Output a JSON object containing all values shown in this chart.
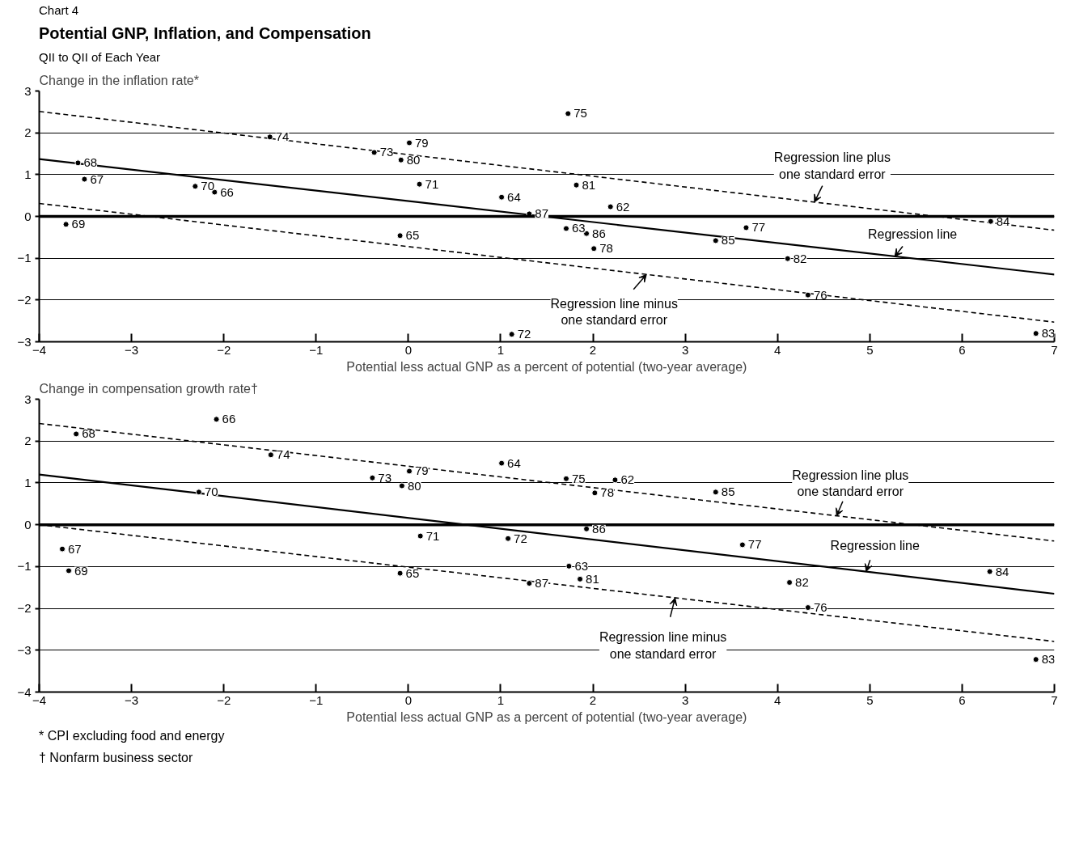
{
  "chart_data": [
    {
      "type": "scatter",
      "title": "Potential GNP, Inflation, and Compensation",
      "subtitle": "QII to QII of Each Year",
      "ylabel": "Change in the inflation rate*",
      "xlabel": "Potential less actual GNP as a percent of potential (two-year average)",
      "xlim": [
        -4,
        7
      ],
      "ylim": [
        -3,
        3
      ],
      "xticks": [
        -4,
        -3,
        -2,
        -1,
        0,
        1,
        2,
        3,
        4,
        5,
        6,
        7
      ],
      "yticks": [
        -3,
        -2,
        -1,
        0,
        1,
        2,
        3
      ],
      "grid": "y",
      "marker": "circle",
      "ref_lines": [
        {
          "axis": "y",
          "value": 0
        }
      ],
      "annotations": [
        "Chart 4",
        {
          "text": "Regression line plus\none standard error",
          "x": 4.4,
          "y": 0.34
        },
        {
          "text": "Regression line",
          "x": 5.27,
          "y": -0.96
        },
        {
          "text": "Regression line minus\none standard error",
          "x": 2.58,
          "y": -1.39
        },
        {
          "text": "75",
          "x": 1.73,
          "y": 2.46
        },
        {
          "text": "74",
          "x": -1.5,
          "y": 1.9
        },
        {
          "text": "79",
          "x": 0.01,
          "y": 1.76
        },
        {
          "text": "73",
          "x": -0.37,
          "y": 1.53
        },
        {
          "text": "80",
          "x": -0.08,
          "y": 1.35
        },
        {
          "text": "68",
          "x": -3.58,
          "y": 1.28
        },
        {
          "text": "67",
          "x": -3.51,
          "y": 0.89
        },
        {
          "text": "70",
          "x": -2.31,
          "y": 0.72
        },
        {
          "text": "66",
          "x": -2.1,
          "y": 0.58
        },
        {
          "text": "71",
          "x": 0.12,
          "y": 0.77
        },
        {
          "text": "81",
          "x": 1.82,
          "y": 0.75
        },
        {
          "text": "64",
          "x": 1.01,
          "y": 0.46
        },
        {
          "text": "62",
          "x": 2.19,
          "y": 0.23
        },
        {
          "text": "87",
          "x": 1.31,
          "y": 0.06
        },
        {
          "text": "69",
          "x": -3.71,
          "y": -0.19
        },
        {
          "text": "63",
          "x": 1.71,
          "y": -0.29
        },
        {
          "text": "86",
          "x": 1.93,
          "y": -0.41
        },
        {
          "text": "77",
          "x": 3.66,
          "y": -0.27
        },
        {
          "text": "85",
          "x": 3.33,
          "y": -0.58
        },
        {
          "text": "84",
          "x": 6.31,
          "y": -0.12
        },
        {
          "text": "65",
          "x": -0.09,
          "y": -0.46
        },
        {
          "text": "78",
          "x": 2.01,
          "y": -0.77
        },
        {
          "text": "82",
          "x": 4.11,
          "y": -1.01
        },
        {
          "text": "76",
          "x": 4.33,
          "y": -1.88
        },
        {
          "text": "72",
          "x": 1.12,
          "y": -2.82
        },
        {
          "text": "83",
          "x": 6.8,
          "y": -2.8
        }
      ],
      "series": [
        {
          "color": "#000000",
          "x": [
            1.73,
            -1.5,
            0.01,
            -0.37,
            -0.08,
            -3.58,
            -3.51,
            -2.31,
            -2.1,
            0.12,
            1.82,
            1.01,
            2.19,
            1.31,
            -3.71,
            1.71,
            1.93,
            3.66,
            3.33,
            6.31,
            -0.09,
            2.01,
            4.11,
            4.33,
            1.12,
            6.8
          ],
          "values": [
            2.46,
            1.9,
            1.76,
            1.53,
            1.35,
            1.28,
            0.89,
            0.72,
            0.58,
            0.77,
            0.75,
            0.46,
            0.23,
            0.06,
            -0.19,
            -0.29,
            -0.41,
            -0.27,
            -0.58,
            -0.12,
            -0.46,
            -0.77,
            -1.01,
            -1.88,
            -2.82,
            -2.8
          ]
        },
        {
          "type": "line",
          "marker": "none",
          "color": "#000000",
          "line_style": "solid",
          "x": [
            -4,
            7
          ],
          "values": [
            1.37,
            -1.39
          ]
        },
        {
          "type": "line",
          "marker": "none",
          "color": "#000000",
          "line_style": "dashed",
          "x": [
            -4,
            7
          ],
          "values": [
            2.51,
            -0.33
          ]
        },
        {
          "type": "line",
          "marker": "none",
          "color": "#000000",
          "line_style": "dashed",
          "x": [
            -4,
            7
          ],
          "values": [
            0.31,
            -2.53
          ]
        }
      ]
    },
    {
      "type": "scatter",
      "ylabel": "Change in compensation growth rate†",
      "xlabel": "Potential less actual GNP as a percent of potential (two-year average)",
      "xlim": [
        -4,
        7
      ],
      "ylim": [
        -4,
        3
      ],
      "xticks": [
        -4,
        -3,
        -2,
        -1,
        0,
        1,
        2,
        3,
        4,
        5,
        6,
        7
      ],
      "yticks": [
        -4,
        -3,
        -2,
        -1,
        0,
        1,
        2,
        3
      ],
      "grid": "y",
      "marker": "circle",
      "ref_lines": [
        {
          "axis": "y",
          "value": 0
        }
      ],
      "annotations": [
        {
          "text": "Regression line plus\none standard error",
          "x": 4.64,
          "y": 0.21
        },
        {
          "text": "Regression line",
          "x": 4.96,
          "y": -1.12
        },
        {
          "text": "Regression line minus\none standard error",
          "x": 2.89,
          "y": -1.75
        },
        {
          "text": "66",
          "x": -2.08,
          "y": 2.52
        },
        {
          "text": "68",
          "x": -3.6,
          "y": 2.17
        },
        {
          "text": "74",
          "x": -1.49,
          "y": 1.67
        },
        {
          "text": "64",
          "x": 1.01,
          "y": 1.47
        },
        {
          "text": "79",
          "x": 0.01,
          "y": 1.28
        },
        {
          "text": "73",
          "x": -0.39,
          "y": 1.12
        },
        {
          "text": "75",
          "x": 1.71,
          "y": 1.1
        },
        {
          "text": "62",
          "x": 2.24,
          "y": 1.07
        },
        {
          "text": "80",
          "x": -0.07,
          "y": 0.93
        },
        {
          "text": "78",
          "x": 2.02,
          "y": 0.76
        },
        {
          "text": "85",
          "x": 3.33,
          "y": 0.78
        },
        {
          "text": "70",
          "x": -2.27,
          "y": 0.78
        },
        {
          "text": "86",
          "x": 1.93,
          "y": -0.1
        },
        {
          "text": "71",
          "x": 0.13,
          "y": -0.27
        },
        {
          "text": "72",
          "x": 1.08,
          "y": -0.33
        },
        {
          "text": "77",
          "x": 3.62,
          "y": -0.48
        },
        {
          "text": "67",
          "x": -3.75,
          "y": -0.58
        },
        {
          "text": "63",
          "x": 1.74,
          "y": -0.99
        },
        {
          "text": "69",
          "x": -3.68,
          "y": -1.1
        },
        {
          "text": "65",
          "x": -0.09,
          "y": -1.16
        },
        {
          "text": "84",
          "x": 6.3,
          "y": -1.12
        },
        {
          "text": "81",
          "x": 1.86,
          "y": -1.3
        },
        {
          "text": "87",
          "x": 1.31,
          "y": -1.4
        },
        {
          "text": "82",
          "x": 4.13,
          "y": -1.38
        },
        {
          "text": "76",
          "x": 4.33,
          "y": -1.98
        },
        {
          "text": "83",
          "x": 6.8,
          "y": -3.22
        },
        "* CPI excluding food and energy",
        "† Nonfarm business sector"
      ],
      "series": [
        {
          "color": "#000000",
          "x": [
            -2.08,
            -3.6,
            -1.49,
            1.01,
            0.01,
            -0.39,
            1.71,
            2.24,
            -0.07,
            2.02,
            3.33,
            -2.27,
            1.93,
            0.13,
            1.08,
            3.62,
            -3.75,
            1.74,
            -3.68,
            -0.09,
            6.3,
            1.86,
            1.31,
            4.13,
            4.33,
            6.8
          ],
          "values": [
            2.52,
            2.17,
            1.67,
            1.47,
            1.28,
            1.12,
            1.1,
            1.07,
            0.93,
            0.76,
            0.78,
            0.78,
            -0.1,
            -0.27,
            -0.33,
            -0.48,
            -0.58,
            -0.99,
            -1.1,
            -1.16,
            -1.12,
            -1.3,
            -1.4,
            -1.38,
            -1.98,
            -3.22
          ]
        },
        {
          "type": "line",
          "marker": "none",
          "color": "#000000",
          "line_style": "solid",
          "x": [
            -4,
            7
          ],
          "values": [
            1.2,
            -1.65
          ]
        },
        {
          "type": "line",
          "marker": "none",
          "color": "#000000",
          "line_style": "dashed",
          "x": [
            -4,
            7
          ],
          "values": [
            2.42,
            -0.39
          ]
        },
        {
          "type": "line",
          "marker": "none",
          "color": "#000000",
          "line_style": "dashed",
          "x": [
            -4,
            7
          ],
          "values": [
            0.0,
            -2.79
          ]
        }
      ]
    }
  ]
}
